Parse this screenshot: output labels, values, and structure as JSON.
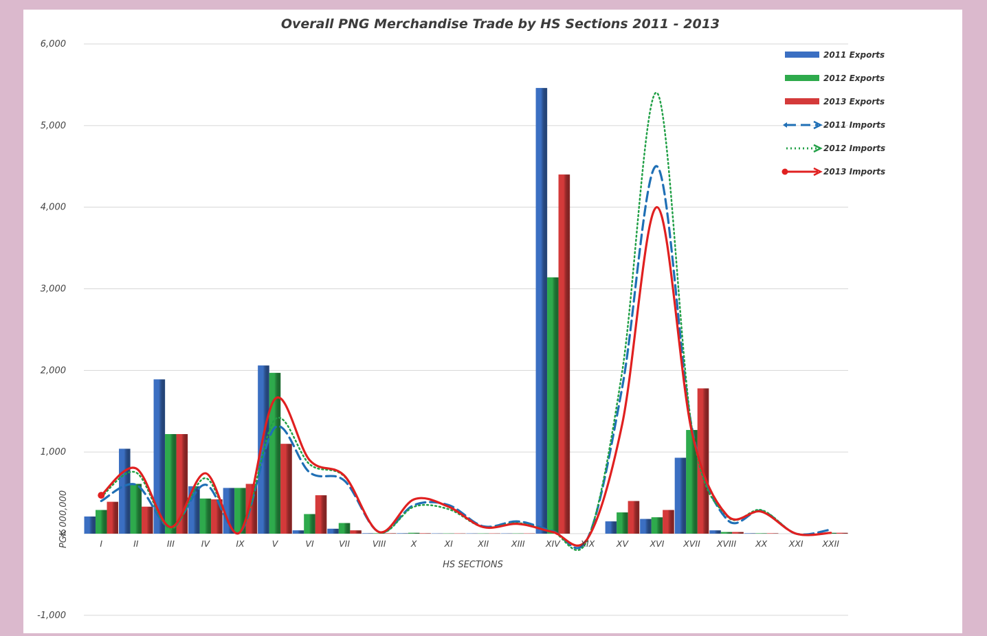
{
  "chart_data": {
    "type": "bar",
    "title": "Overall PNG Merchandise Trade by HS Sections 2011 - 2013",
    "xlabel": "HS SECTIONS",
    "ylabel": "PGK 000,000",
    "ylim": [
      -1000,
      6000
    ],
    "yticks": [
      "-1,000",
      "0",
      "1,000",
      "2,000",
      "3,000",
      "4,000",
      "5,000",
      "6,000"
    ],
    "ytick_values": [
      -1000,
      0,
      1000,
      2000,
      3000,
      4000,
      5000,
      6000
    ],
    "grid": true,
    "legend_position": "top-right",
    "categories": [
      "I",
      "II",
      "III",
      "IV",
      "IX",
      "V",
      "VI",
      "VII",
      "VIII",
      "X",
      "XI",
      "XII",
      "XIII",
      "XIV",
      "XIX",
      "XV",
      "XVI",
      "XVII",
      "XVIII",
      "XX",
      "XXI",
      "XXII"
    ],
    "series": [
      {
        "name": "2011 Exports",
        "kind": "bar",
        "color": "#3b6fc2",
        "values": [
          210,
          1040,
          1890,
          580,
          560,
          2060,
          40,
          60,
          5,
          5,
          3,
          3,
          3,
          5460,
          0,
          150,
          180,
          930,
          40,
          5,
          0,
          0
        ]
      },
      {
        "name": "2012 Exports",
        "kind": "bar",
        "color": "#2eaa4c",
        "values": [
          290,
          610,
          1220,
          430,
          560,
          1970,
          240,
          130,
          5,
          10,
          3,
          3,
          3,
          3140,
          0,
          260,
          200,
          1270,
          20,
          5,
          0,
          10
        ]
      },
      {
        "name": "2013 Exports",
        "kind": "bar",
        "color": "#d43a3a",
        "values": [
          390,
          330,
          1220,
          420,
          610,
          1100,
          470,
          40,
          5,
          5,
          3,
          3,
          3,
          4400,
          0,
          400,
          290,
          1780,
          20,
          5,
          0,
          10
        ]
      },
      {
        "name": "2011 Imports",
        "kind": "line",
        "style": "dashed",
        "color": "#1f6fb5",
        "values": [
          400,
          600,
          80,
          600,
          20,
          1300,
          750,
          650,
          20,
          350,
          350,
          90,
          150,
          30,
          -60,
          1800,
          4500,
          1300,
          180,
          280,
          0,
          50
        ]
      },
      {
        "name": "2012 Imports",
        "kind": "line",
        "style": "dotted",
        "color": "#22a047",
        "values": [
          450,
          750,
          60,
          680,
          20,
          1400,
          850,
          700,
          20,
          330,
          300,
          80,
          130,
          20,
          -70,
          2000,
          5400,
          1300,
          220,
          290,
          0,
          10
        ]
      },
      {
        "name": "2013 Imports",
        "kind": "line",
        "style": "solid",
        "color": "#e02020",
        "values": [
          470,
          800,
          80,
          740,
          20,
          1650,
          900,
          710,
          20,
          420,
          330,
          80,
          120,
          20,
          -60,
          1350,
          4000,
          1250,
          230,
          270,
          0,
          10
        ]
      }
    ]
  }
}
